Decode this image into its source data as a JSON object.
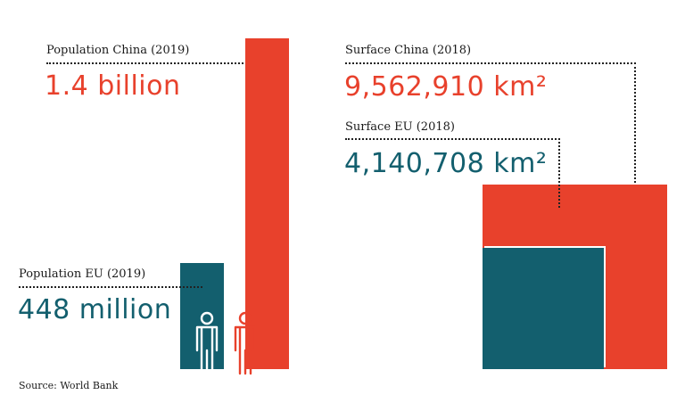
{
  "colors": {
    "china": "#e8412c",
    "eu": "#135f6e",
    "text": "#1a1a1a",
    "background": "#ffffff"
  },
  "labels": {
    "population_china": "Population China (2019)",
    "population_china_value": "1.4 billion",
    "population_eu": "Population EU (2019)",
    "population_eu_value": "448 million",
    "surface_china": "Surface China (2018)",
    "surface_china_value": "9,562,910 km²",
    "surface_eu": "Surface EU (2018)",
    "surface_eu_value": "4,140,708 km²",
    "source": "Source: World Bank"
  },
  "icons": [
    "person-icon-eu",
    "person-icon-china"
  ],
  "chart_data": [
    {
      "type": "bar",
      "categories": [
        "Population China (2019)",
        "Population EU (2019)"
      ],
      "values": [
        1400000000,
        448000000
      ],
      "value_labels": [
        "1.4 billion",
        "448 million"
      ],
      "title": "",
      "xlabel": "",
      "ylabel": ""
    },
    {
      "type": "area",
      "categories": [
        "Surface China (2018)",
        "Surface EU (2018)"
      ],
      "values": [
        9562910,
        4140708
      ],
      "unit": "km²",
      "value_labels": [
        "9,562,910 km²",
        "4,140,708 km²"
      ],
      "title": "",
      "xlabel": "",
      "ylabel": ""
    }
  ]
}
